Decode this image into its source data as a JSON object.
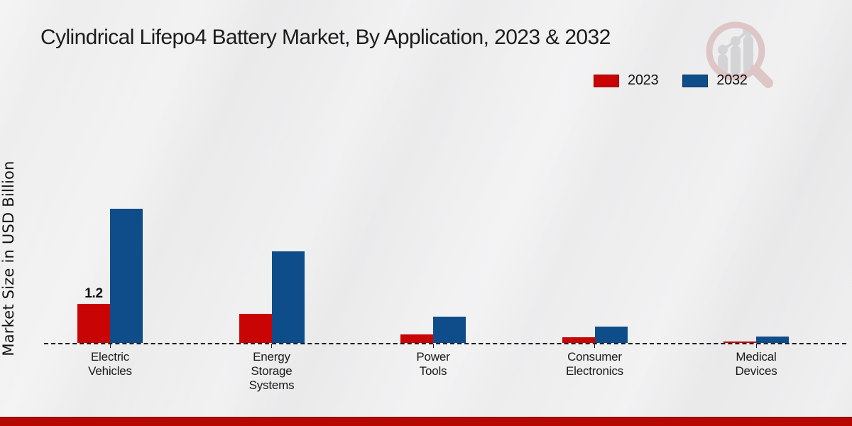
{
  "title": "Cylindrical Lifepo4 Battery Market, By Application, 2023 & 2032",
  "ylabel": "Market Size in USD Billion",
  "legend": {
    "items": [
      {
        "label": "2023"
      },
      {
        "label": "2032"
      }
    ]
  },
  "colors": {
    "series_2023": "#c90404",
    "series_2032": "#0f4d8a",
    "footer_bar": "#b50801",
    "logo_red": "#ddc2c3",
    "logo_gray": "#d2d2d5"
  },
  "chart_data": {
    "type": "bar",
    "title": "Cylindrical Lifepo4 Battery Market, By Application, 2023 & 2032",
    "xlabel": "",
    "ylabel": "Market Size in USD Billion",
    "categories": [
      "Electric\nVehicles",
      "Energy\nStorage\nSystems",
      "Power\nTools",
      "Consumer\nElectronics",
      "Medical\nDevices"
    ],
    "series": [
      {
        "name": "2023",
        "color": "#c90404",
        "values": [
          1.2,
          0.9,
          0.25,
          0.17,
          0.05
        ]
      },
      {
        "name": "2032",
        "color": "#0f4d8a",
        "values": [
          4.1,
          2.8,
          0.8,
          0.5,
          0.2
        ]
      }
    ],
    "data_labels": [
      {
        "series": "2023",
        "category": "Electric\nVehicles",
        "text": "1.2"
      }
    ],
    "ylim": [
      0,
      4.5
    ],
    "grid": false,
    "baseline_style": "dashed",
    "legend_position": "top-right"
  }
}
